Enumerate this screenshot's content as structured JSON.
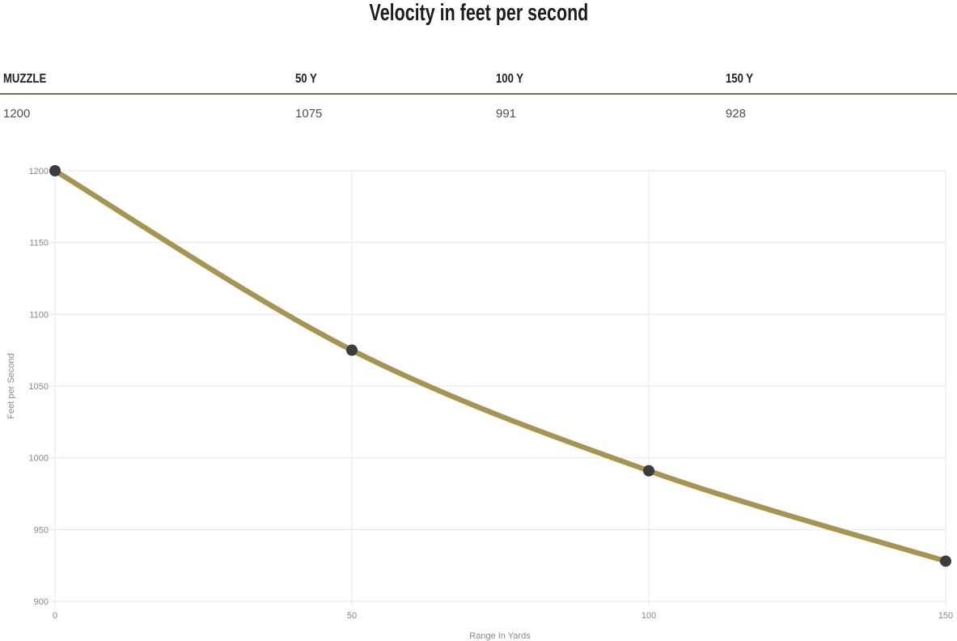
{
  "title": "Velocity in feet per second",
  "table": {
    "columns": [
      {
        "label": "MUZZLE",
        "value": "1200"
      },
      {
        "label": "50 Y",
        "value": "1075"
      },
      {
        "label": "100 Y",
        "value": "991"
      },
      {
        "label": "150 Y",
        "value": "928"
      }
    ]
  },
  "chart_data": {
    "type": "line",
    "title": "Velocity in feet per second",
    "x": [
      0,
      50,
      100,
      150
    ],
    "series": [
      {
        "name": "Velocity",
        "values": [
          1200,
          1075,
          991,
          928
        ]
      }
    ],
    "xlabel": "Range In Yards",
    "ylabel": "Feet per Second",
    "xlim": [
      0,
      150
    ],
    "ylim": [
      900,
      1200
    ],
    "x_ticks": [
      0,
      50,
      100,
      150
    ],
    "y_ticks": [
      900,
      950,
      1000,
      1050,
      1100,
      1150,
      1200
    ],
    "grid": true,
    "legend": "none",
    "line_color": "#a69552",
    "point_color": "#3c3c3c",
    "grid_color": "#e7e7e7",
    "tick_label_color": "#878787",
    "axis_title_color": "#8a8a8a"
  },
  "colors": {
    "title_text": "#1d1d1d",
    "header_text": "#222222",
    "value_text": "#4f4f4f",
    "table_divider": "#746f5f",
    "background": "#ffffff"
  }
}
